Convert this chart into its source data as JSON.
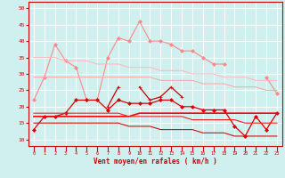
{
  "x": [
    0,
    1,
    2,
    3,
    4,
    5,
    6,
    7,
    8,
    9,
    10,
    11,
    12,
    13,
    14,
    15,
    16,
    17,
    18,
    19,
    20,
    21,
    22,
    23
  ],
  "series": [
    {
      "color": "#ff8888",
      "linewidth": 0.8,
      "marker": "D",
      "markersize": 2.0,
      "values": [
        22,
        29,
        39,
        34,
        32,
        22,
        22,
        35,
        41,
        40,
        46,
        40,
        40,
        39,
        37,
        37,
        35,
        33,
        33,
        null,
        null,
        null,
        29,
        24
      ]
    },
    {
      "color": "#ffaaaa",
      "linewidth": 0.8,
      "marker": null,
      "markersize": 0,
      "values": [
        29,
        29,
        29,
        29,
        29,
        29,
        29,
        29,
        29,
        29,
        29,
        29,
        28,
        28,
        28,
        28,
        27,
        27,
        27,
        26,
        26,
        26,
        25,
        25
      ]
    },
    {
      "color": "#ffbbbb",
      "linewidth": 0.8,
      "marker": null,
      "markersize": 0,
      "values": [
        35,
        35,
        35,
        34,
        34,
        34,
        33,
        33,
        33,
        32,
        32,
        32,
        31,
        31,
        31,
        30,
        30,
        30,
        29,
        29,
        29,
        28,
        28,
        28
      ]
    },
    {
      "color": "#dd0000",
      "linewidth": 0.9,
      "marker": "D",
      "markersize": 2.0,
      "values": [
        13,
        17,
        17,
        18,
        22,
        22,
        22,
        19,
        22,
        21,
        21,
        21,
        22,
        22,
        20,
        20,
        19,
        19,
        19,
        14,
        11,
        17,
        13,
        18
      ]
    },
    {
      "color": "#cc0000",
      "linewidth": 0.9,
      "marker": "+",
      "markersize": 3.5,
      "values": [
        null,
        null,
        null,
        null,
        null,
        null,
        null,
        20,
        26,
        null,
        26,
        22,
        23,
        26,
        23,
        null,
        null,
        null,
        null,
        null,
        null,
        null,
        null,
        null
      ]
    },
    {
      "color": "#ff0000",
      "linewidth": 1.2,
      "marker": null,
      "markersize": 0,
      "values": [
        17,
        17,
        17,
        17,
        17,
        17,
        17,
        17,
        17,
        17,
        18,
        18,
        18,
        18,
        18,
        18,
        18,
        18,
        18,
        18,
        18,
        18,
        18,
        18
      ]
    },
    {
      "color": "#ee2222",
      "linewidth": 0.8,
      "marker": null,
      "markersize": 0,
      "values": [
        18,
        18,
        18,
        18,
        18,
        18,
        18,
        18,
        18,
        17,
        17,
        17,
        17,
        17,
        17,
        16,
        16,
        16,
        16,
        16,
        15,
        15,
        15,
        15
      ]
    },
    {
      "color": "#cc1111",
      "linewidth": 0.8,
      "marker": null,
      "markersize": 0,
      "values": [
        15,
        15,
        15,
        15,
        15,
        15,
        15,
        15,
        15,
        14,
        14,
        14,
        13,
        13,
        13,
        13,
        12,
        12,
        12,
        11,
        11,
        11,
        11,
        11
      ]
    }
  ],
  "xlim": [
    -0.5,
    23.5
  ],
  "ylim": [
    8,
    52
  ],
  "yticks": [
    10,
    15,
    20,
    25,
    30,
    35,
    40,
    45,
    50
  ],
  "xticks": [
    0,
    1,
    2,
    3,
    4,
    5,
    6,
    7,
    8,
    9,
    10,
    11,
    12,
    13,
    14,
    15,
    16,
    17,
    18,
    19,
    20,
    21,
    22,
    23
  ],
  "xlabel": "Vent moyen/en rafales ( km/h )",
  "background_color": "#d0f0f0",
  "grid_color": "#ffffff",
  "tick_color": "#cc0000",
  "label_color": "#cc0000"
}
